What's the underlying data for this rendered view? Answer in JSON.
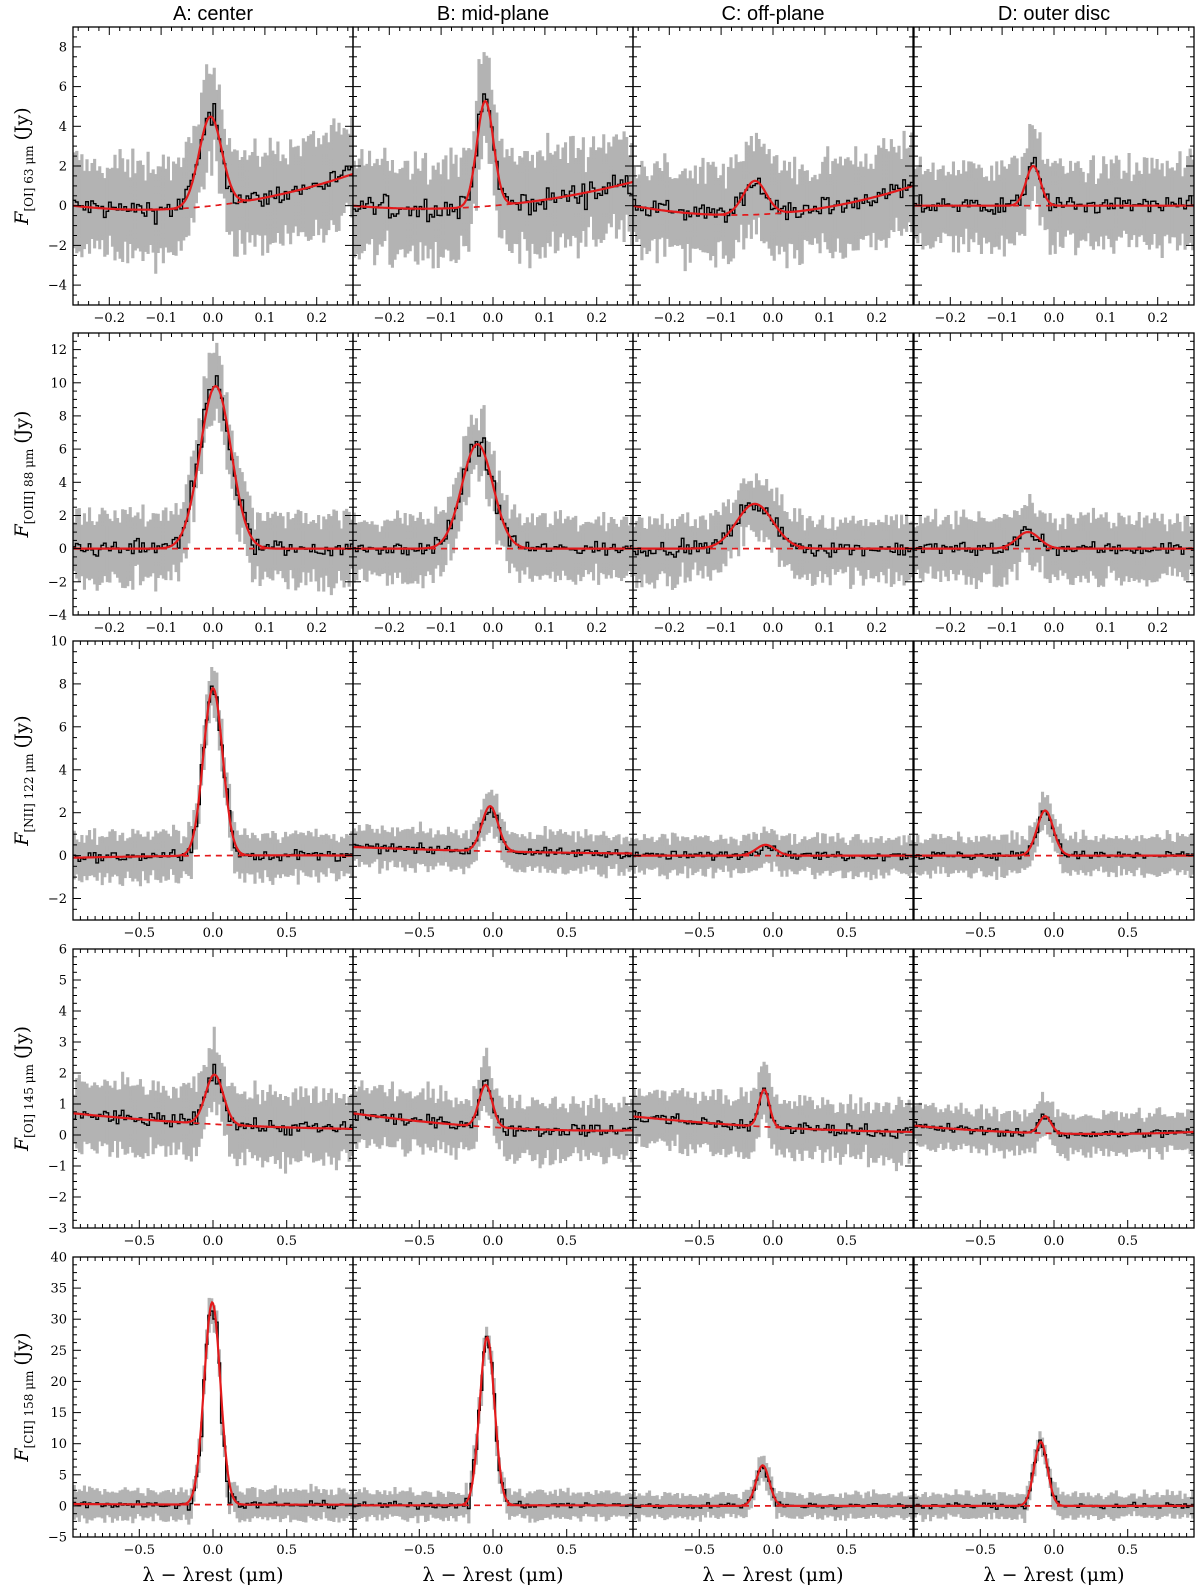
{
  "chart_data": {
    "type": "line",
    "columns": [
      "A: center",
      "B: mid-plane",
      "C: off-plane",
      "D: outer disc"
    ],
    "xlabel": "λ − λrest (μm)",
    "colors": {
      "data": "#000000",
      "error": "#b3b3b3",
      "fit": "#e31a1c"
    },
    "rows": [
      {
        "ylabel_main": "F",
        "ylabel_sub": "[OI] 63 μm",
        "ylabel_unit": "(Jy)",
        "xlim": [
          -0.27,
          0.27
        ],
        "ylim": [
          -5,
          9
        ],
        "xticks": [
          -0.2,
          -0.1,
          0.0,
          0.1,
          0.2
        ],
        "xtick_labels": [
          "−0.2",
          "−0.1",
          "0.0",
          "0.1",
          "0.2"
        ],
        "yticks": [
          -4,
          -2,
          0,
          2,
          4,
          6,
          8
        ],
        "ytick_labels": [
          "−4",
          "−2",
          "0",
          "2",
          "4",
          "6",
          "8"
        ],
        "noise": 2.0,
        "panels": [
          {
            "peak_x": -0.005,
            "amplitude": 4.5,
            "width": 0.022,
            "continuum": [
              0.0,
              0.0,
              1.6
            ],
            "noise": 2.2
          },
          {
            "peak_x": -0.015,
            "amplitude": 5.3,
            "width": 0.016,
            "continuum": [
              0.0,
              0.0,
              1.2
            ],
            "noise": 2.3
          },
          {
            "peak_x": -0.035,
            "amplitude": 1.7,
            "width": 0.022,
            "continuum": [
              0.0,
              -0.4,
              1.0
            ],
            "noise": 2.1
          },
          {
            "peak_x": -0.04,
            "amplitude": 2.0,
            "width": 0.014,
            "continuum": [
              0.0,
              0.0,
              0.0
            ],
            "noise": 1.9
          }
        ]
      },
      {
        "ylabel_main": "F",
        "ylabel_sub": "[OIII] 88 μm",
        "ylabel_unit": "(Jy)",
        "xlim": [
          -0.27,
          0.27
        ],
        "ylim": [
          -4,
          13
        ],
        "xticks": [
          -0.2,
          -0.1,
          0.0,
          0.1,
          0.2
        ],
        "xtick_labels": [
          "−0.2",
          "−0.1",
          "0.0",
          "0.1",
          "0.2"
        ],
        "yticks": [
          -4,
          -2,
          0,
          2,
          4,
          6,
          8,
          10,
          12
        ],
        "ytick_labels": [
          "−4",
          "−2",
          "0",
          "2",
          "4",
          "6",
          "8",
          "10",
          "12"
        ],
        "panels": [
          {
            "peak_x": 0.005,
            "amplitude": 9.8,
            "width": 0.03,
            "continuum": [
              0.0,
              0.0,
              0.0
            ],
            "noise": 1.9
          },
          {
            "peak_x": -0.03,
            "amplitude": 6.3,
            "width": 0.03,
            "continuum": [
              0.0,
              0.0,
              0.0
            ],
            "noise": 1.7
          },
          {
            "peak_x": -0.035,
            "amplitude": 2.7,
            "width": 0.035,
            "continuum": [
              0.0,
              0.0,
              0.0
            ],
            "noise": 1.7
          },
          {
            "peak_x": -0.05,
            "amplitude": 1.0,
            "width": 0.022,
            "continuum": [
              0.0,
              0.0,
              0.0
            ],
            "noise": 1.7
          }
        ]
      },
      {
        "ylabel_main": "F",
        "ylabel_sub": "[NII] 122 μm",
        "ylabel_unit": "(Jy)",
        "xlim": [
          -0.95,
          0.95
        ],
        "ylim": [
          -3,
          10
        ],
        "xticks": [
          -0.5,
          0.0,
          0.5
        ],
        "xtick_labels": [
          "−0.5",
          "0.0",
          "0.5"
        ],
        "yticks": [
          -2,
          0,
          2,
          4,
          6,
          8,
          10
        ],
        "ytick_labels": [
          "−2",
          "0",
          "2",
          "4",
          "6",
          "8",
          "10"
        ],
        "panels": [
          {
            "peak_x": 0.0,
            "amplitude": 7.8,
            "width": 0.065,
            "continuum": [
              -0.1,
              0.0,
              0.0
            ],
            "noise": 1.0
          },
          {
            "peak_x": -0.02,
            "amplitude": 2.1,
            "width": 0.055,
            "continuum": [
              0.4,
              0.2,
              0.1
            ],
            "noise": 0.8
          },
          {
            "peak_x": -0.05,
            "amplitude": 0.5,
            "width": 0.065,
            "continuum": [
              0.0,
              0.0,
              0.0
            ],
            "noise": 0.8
          },
          {
            "peak_x": -0.06,
            "amplitude": 2.1,
            "width": 0.055,
            "continuum": [
              0.0,
              0.0,
              0.0
            ],
            "noise": 0.8
          }
        ]
      },
      {
        "ylabel_main": "F",
        "ylabel_sub": "[OI] 145 μm",
        "ylabel_unit": "(Jy)",
        "xlim": [
          -0.95,
          0.95
        ],
        "ylim": [
          -3,
          6
        ],
        "xticks": [
          -0.5,
          0.0,
          0.5
        ],
        "xtick_labels": [
          "−0.5",
          "0.0",
          "0.5"
        ],
        "yticks": [
          -3,
          -2,
          -1,
          0,
          1,
          2,
          3,
          4,
          5,
          6
        ],
        "ytick_labels": [
          "−3",
          "−2",
          "−1",
          "0",
          "1",
          "2",
          "3",
          "4",
          "5",
          "6"
        ],
        "panels": [
          {
            "peak_x": 0.01,
            "amplitude": 1.6,
            "width": 0.06,
            "continuum": [
              0.7,
              0.35,
              0.2
            ],
            "noise": 1.0
          },
          {
            "peak_x": -0.05,
            "amplitude": 1.35,
            "width": 0.045,
            "continuum": [
              0.7,
              0.25,
              0.15
            ],
            "noise": 0.85
          },
          {
            "peak_x": -0.06,
            "amplitude": 1.2,
            "width": 0.035,
            "continuum": [
              0.6,
              0.25,
              0.1
            ],
            "noise": 0.85
          },
          {
            "peak_x": -0.06,
            "amplitude": 0.55,
            "width": 0.04,
            "continuum": [
              0.3,
              0.05,
              0.1
            ],
            "noise": 0.6
          }
        ]
      },
      {
        "ylabel_main": "F",
        "ylabel_sub": "[CII] 158 μm",
        "ylabel_unit": "(Jy)",
        "xlim": [
          -0.95,
          0.95
        ],
        "ylim": [
          -5,
          40
        ],
        "xticks": [
          -0.5,
          0.0,
          0.5
        ],
        "xtick_labels": [
          "−0.5",
          "0.0",
          "0.5"
        ],
        "yticks": [
          -5,
          0,
          5,
          10,
          15,
          20,
          25,
          30,
          35,
          40
        ],
        "ytick_labels": [
          "−5",
          "0",
          "5",
          "10",
          "15",
          "20",
          "25",
          "30",
          "35",
          "40"
        ],
        "panels": [
          {
            "peak_x": -0.005,
            "amplitude": 32.5,
            "width": 0.055,
            "continuum": [
              0.3,
              0.2,
              0.2
            ],
            "noise": 2.2
          },
          {
            "peak_x": -0.04,
            "amplitude": 27.0,
            "width": 0.05,
            "continuum": [
              0.1,
              0.1,
              0.1
            ],
            "noise": 2.0
          },
          {
            "peak_x": -0.07,
            "amplitude": 6.5,
            "width": 0.045,
            "continuum": [
              0.0,
              0.0,
              0.0
            ],
            "noise": 1.8
          },
          {
            "peak_x": -0.09,
            "amplitude": 10.3,
            "width": 0.045,
            "continuum": [
              0.0,
              0.0,
              0.0
            ],
            "noise": 1.8
          }
        ]
      }
    ]
  }
}
